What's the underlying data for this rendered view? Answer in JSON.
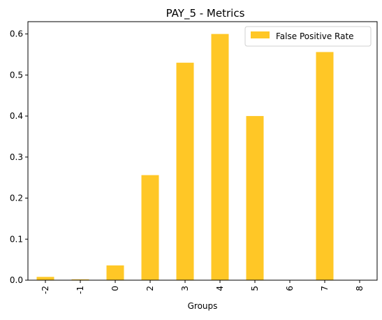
{
  "chart_data": {
    "type": "bar",
    "title": "PAY_5 - Metrics",
    "xlabel": "Groups",
    "ylabel": "",
    "categories": [
      "-2",
      "-1",
      "0",
      "2",
      "3",
      "4",
      "5",
      "6",
      "7",
      "8"
    ],
    "series": [
      {
        "name": "False Positive Rate",
        "values": [
          0.008,
          0.002,
          0.036,
          0.256,
          0.53,
          0.6,
          0.4,
          0.0,
          0.556,
          0.0
        ]
      }
    ],
    "ylim": [
      0,
      0.63
    ],
    "yticks": [
      0.0,
      0.1,
      0.2,
      0.3,
      0.4,
      0.5,
      0.6
    ],
    "ytick_labels": [
      "0.0",
      "0.1",
      "0.2",
      "0.3",
      "0.4",
      "0.5",
      "0.6"
    ],
    "grid": false,
    "legend_position": "top-right",
    "colors": {
      "bar": "#ffc726",
      "axis": "#000000",
      "background": "#ffffff"
    }
  }
}
